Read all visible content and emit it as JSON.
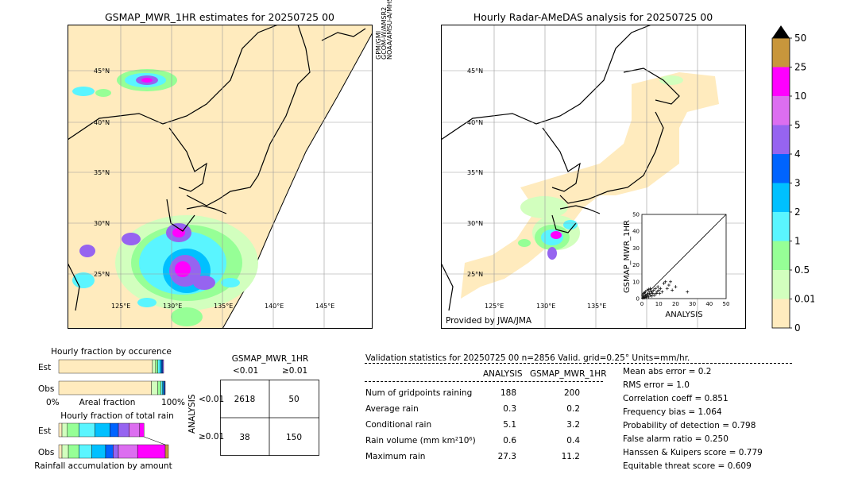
{
  "left_map": {
    "title": "GSMAP_MWR_1HR estimates for 20250725 00",
    "sensor_labels": [
      "GPM/GMI",
      "GCOM-W/AMSR2",
      "NOAA/AMSU-A/MHS"
    ],
    "lat_labels": [
      "45°N",
      "40°N",
      "35°N",
      "30°N",
      "25°N"
    ],
    "lon_labels": [
      "125°E",
      "130°E",
      "135°E",
      "140°E",
      "145°E"
    ]
  },
  "right_map": {
    "title": "Hourly Radar-AMeDAS analysis for 20250725 00",
    "credit": "Provided by JWA/JMA",
    "lat_labels": [
      "45°N",
      "40°N",
      "35°N",
      "30°N",
      "25°N"
    ],
    "lon_labels": [
      "125°E",
      "130°E",
      "135°E"
    ]
  },
  "colorbar": {
    "labels": [
      "50",
      "25",
      "10",
      "5",
      "4",
      "3",
      "2",
      "1",
      "0.5",
      "0.01",
      "0"
    ],
    "colors": [
      "#c8963c",
      "#ff00ff",
      "#dc6ef0",
      "#9664f0",
      "#0064ff",
      "#00c0ff",
      "#5af5ff",
      "#96ff96",
      "#d2ffbe",
      "#ffebbe"
    ]
  },
  "chart_data": [
    {
      "type": "scatter",
      "xlabel": "ANALYSIS",
      "ylabel": "GSMAP_MWR_1HR",
      "xlim": [
        0,
        50
      ],
      "ylim": [
        0,
        50
      ],
      "xticks": [
        "0",
        "10",
        "20",
        "30",
        "40",
        "50"
      ],
      "yticks": [
        "0",
        "10",
        "20",
        "30",
        "40",
        "50"
      ],
      "points": [
        [
          0.5,
          0.3
        ],
        [
          1,
          1
        ],
        [
          1.5,
          0.5
        ],
        [
          2,
          2
        ],
        [
          2.5,
          1
        ],
        [
          3,
          1.5
        ],
        [
          3.5,
          2.5
        ],
        [
          4,
          1
        ],
        [
          4.5,
          3
        ],
        [
          5,
          2
        ],
        [
          5.5,
          4
        ],
        [
          6,
          1.5
        ],
        [
          6.5,
          3
        ],
        [
          7,
          5
        ],
        [
          7.5,
          2
        ],
        [
          8,
          6
        ],
        [
          8.5,
          3
        ],
        [
          9,
          4
        ],
        [
          9.5,
          7
        ],
        [
          10,
          5
        ],
        [
          10.5,
          3
        ],
        [
          11,
          6
        ],
        [
          12,
          4
        ],
        [
          13,
          9
        ],
        [
          14,
          10
        ],
        [
          15,
          6
        ],
        [
          16,
          8
        ],
        [
          17,
          10
        ],
        [
          18,
          5
        ],
        [
          20,
          7
        ],
        [
          27,
          4
        ],
        [
          1,
          3
        ],
        [
          2,
          4
        ],
        [
          3,
          5
        ],
        [
          0.5,
          2
        ],
        [
          1.5,
          3.5
        ],
        [
          2.5,
          0.8
        ],
        [
          4,
          5.5
        ],
        [
          5,
          6
        ],
        [
          6,
          4
        ]
      ]
    },
    {
      "type": "bar",
      "title": "Hourly fraction by occurence",
      "categories": [
        "Est",
        "Obs"
      ],
      "xlabel": "Areal fraction",
      "x_tick_left": "0%",
      "x_tick_right": "100%",
      "series": [
        {
          "values": [
            0.88,
            0.87
          ]
        },
        {
          "values": [
            0.03,
            0.06
          ]
        },
        {
          "values": [
            0.02,
            0.03
          ]
        },
        {
          "values": [
            0.02,
            0.015
          ]
        },
        {
          "values": [
            0.015,
            0.01
          ]
        },
        {
          "values": [
            0.01,
            0.01
          ]
        },
        {
          "values": [
            0.01,
            0.005
          ]
        }
      ]
    },
    {
      "type": "bar",
      "title": "Hourly fraction of total rain",
      "categories": [
        "Est",
        "Obs"
      ],
      "xlabel": "Rainfall accumulation by amount",
      "series": [
        {
          "values": [
            0.03,
            0.03
          ]
        },
        {
          "values": [
            0.05,
            0.06
          ]
        },
        {
          "values": [
            0.11,
            0.1
          ]
        },
        {
          "values": [
            0.15,
            0.12
          ]
        },
        {
          "values": [
            0.14,
            0.13
          ]
        },
        {
          "values": [
            0.08,
            0.07
          ]
        },
        {
          "values": [
            0.1,
            0.05
          ]
        },
        {
          "values": [
            0.1,
            0.18
          ]
        },
        {
          "values": [
            0.04,
            0.26
          ]
        },
        {
          "values": [
            0.0,
            0.03
          ]
        }
      ]
    },
    {
      "type": "table",
      "title": "GSMAP_MWR_1HR",
      "col_headers": [
        "<0.01",
        "≥0.01"
      ],
      "row_headers": [
        "<0.01",
        "≥0.01"
      ],
      "row_axis_label": "ANALYSIS",
      "cells": [
        [
          "2618",
          "50"
        ],
        [
          "38",
          "150"
        ]
      ]
    }
  ],
  "validation": {
    "header": "Validation statistics for 20250725 00  n=2856 Valid. grid=0.25° Units=mm/hr.",
    "col_analysis": "ANALYSIS",
    "col_gsmap": "GSMAP_MWR_1HR",
    "rows": [
      {
        "label": "Num of gridpoints raining",
        "analysis": "188",
        "gsmap": "200"
      },
      {
        "label": "Average rain",
        "analysis": "0.3",
        "gsmap": "0.2"
      },
      {
        "label": "Conditional rain",
        "analysis": "5.1",
        "gsmap": "3.2"
      },
      {
        "label": "Rain volume (mm km²10⁶)",
        "analysis": "0.6",
        "gsmap": "0.4"
      },
      {
        "label": "Maximum rain",
        "analysis": "27.3",
        "gsmap": "11.2"
      }
    ],
    "scores": [
      "Mean abs error =    0.2",
      "RMS error =    1.0",
      "Correlation coeff =  0.851",
      "Frequency bias =  1.064",
      "Probability of detection =  0.798",
      "False alarm ratio =  0.250",
      "Hanssen & Kuipers score =  0.779",
      "Equitable threat score =  0.609"
    ]
  }
}
